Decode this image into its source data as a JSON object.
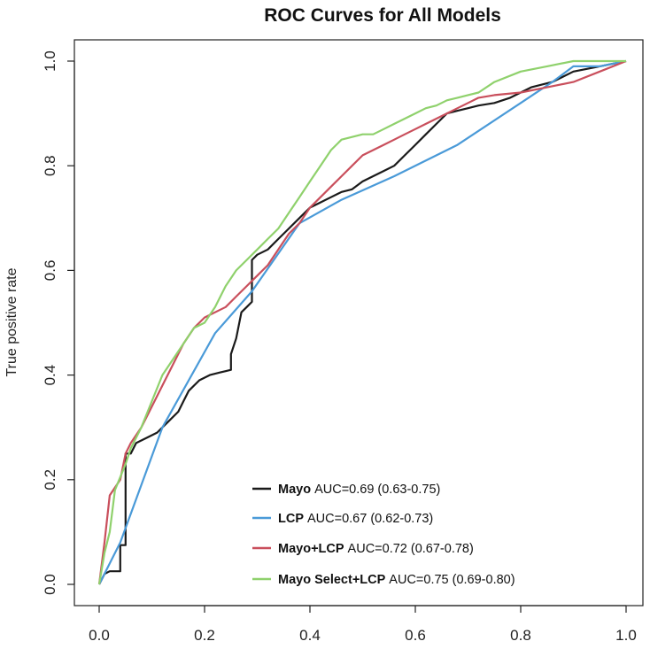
{
  "chart_data": {
    "type": "line",
    "title": "ROC Curves for All Models",
    "xlabel": "",
    "ylabel": "True positive rate",
    "xlim": [
      0,
      1
    ],
    "ylim": [
      0,
      1
    ],
    "x_ticks": [
      "0.0",
      "0.2",
      "0.4",
      "0.6",
      "0.8",
      "1.0"
    ],
    "y_ticks": [
      "0.0",
      "0.2",
      "0.4",
      "0.6",
      "0.8",
      "1.0"
    ],
    "grid": false,
    "legend_position": "bottom-right",
    "diagonal_reference": false,
    "series": [
      {
        "name": "Mayo",
        "auc_text": "AUC=0.69 (0.63-0.75)",
        "color": "#1a1a1a",
        "points": [
          [
            0,
            0
          ],
          [
            0.01,
            0.02
          ],
          [
            0.02,
            0.025
          ],
          [
            0.04,
            0.025
          ],
          [
            0.04,
            0.075
          ],
          [
            0.05,
            0.075
          ],
          [
            0.05,
            0.25
          ],
          [
            0.06,
            0.25
          ],
          [
            0.07,
            0.27
          ],
          [
            0.09,
            0.28
          ],
          [
            0.11,
            0.29
          ],
          [
            0.12,
            0.3
          ],
          [
            0.13,
            0.31
          ],
          [
            0.15,
            0.33
          ],
          [
            0.16,
            0.35
          ],
          [
            0.17,
            0.37
          ],
          [
            0.19,
            0.39
          ],
          [
            0.21,
            0.4
          ],
          [
            0.23,
            0.405
          ],
          [
            0.25,
            0.41
          ],
          [
            0.25,
            0.44
          ],
          [
            0.26,
            0.47
          ],
          [
            0.27,
            0.52
          ],
          [
            0.28,
            0.53
          ],
          [
            0.29,
            0.54
          ],
          [
            0.29,
            0.62
          ],
          [
            0.3,
            0.63
          ],
          [
            0.32,
            0.64
          ],
          [
            0.34,
            0.66
          ],
          [
            0.36,
            0.68
          ],
          [
            0.38,
            0.7
          ],
          [
            0.4,
            0.72
          ],
          [
            0.42,
            0.73
          ],
          [
            0.44,
            0.74
          ],
          [
            0.46,
            0.75
          ],
          [
            0.48,
            0.755
          ],
          [
            0.5,
            0.77
          ],
          [
            0.52,
            0.78
          ],
          [
            0.54,
            0.79
          ],
          [
            0.56,
            0.8
          ],
          [
            0.58,
            0.82
          ],
          [
            0.6,
            0.84
          ],
          [
            0.62,
            0.86
          ],
          [
            0.64,
            0.88
          ],
          [
            0.66,
            0.9
          ],
          [
            0.68,
            0.905
          ],
          [
            0.7,
            0.91
          ],
          [
            0.72,
            0.915
          ],
          [
            0.75,
            0.92
          ],
          [
            0.78,
            0.93
          ],
          [
            0.82,
            0.95
          ],
          [
            0.86,
            0.96
          ],
          [
            0.9,
            0.98
          ],
          [
            0.95,
            0.99
          ],
          [
            1,
            1
          ]
        ]
      },
      {
        "name": "LCP",
        "auc_text": "AUC=0.67 (0.62-0.73)",
        "color": "#4a9ad8",
        "points": [
          [
            0,
            0
          ],
          [
            0.04,
            0.08
          ],
          [
            0.12,
            0.3
          ],
          [
            0.22,
            0.48
          ],
          [
            0.29,
            0.56
          ],
          [
            0.38,
            0.69
          ],
          [
            0.46,
            0.735
          ],
          [
            0.56,
            0.78
          ],
          [
            0.68,
            0.84
          ],
          [
            0.8,
            0.92
          ],
          [
            0.86,
            0.96
          ],
          [
            0.9,
            0.99
          ],
          [
            0.95,
            0.99
          ],
          [
            1,
            1
          ]
        ]
      },
      {
        "name": "Mayo+LCP",
        "auc_text": "AUC=0.72 (0.67-0.78)",
        "color": "#c94f5c",
        "points": [
          [
            0,
            0
          ],
          [
            0.01,
            0.08
          ],
          [
            0.02,
            0.17
          ],
          [
            0.04,
            0.2
          ],
          [
            0.05,
            0.25
          ],
          [
            0.06,
            0.27
          ],
          [
            0.08,
            0.3
          ],
          [
            0.1,
            0.34
          ],
          [
            0.12,
            0.38
          ],
          [
            0.14,
            0.42
          ],
          [
            0.16,
            0.46
          ],
          [
            0.18,
            0.49
          ],
          [
            0.2,
            0.51
          ],
          [
            0.22,
            0.52
          ],
          [
            0.24,
            0.53
          ],
          [
            0.26,
            0.55
          ],
          [
            0.28,
            0.57
          ],
          [
            0.3,
            0.59
          ],
          [
            0.32,
            0.61
          ],
          [
            0.34,
            0.64
          ],
          [
            0.36,
            0.67
          ],
          [
            0.38,
            0.69
          ],
          [
            0.4,
            0.72
          ],
          [
            0.42,
            0.74
          ],
          [
            0.44,
            0.76
          ],
          [
            0.46,
            0.78
          ],
          [
            0.48,
            0.8
          ],
          [
            0.5,
            0.82
          ],
          [
            0.52,
            0.83
          ],
          [
            0.54,
            0.84
          ],
          [
            0.56,
            0.85
          ],
          [
            0.58,
            0.86
          ],
          [
            0.6,
            0.87
          ],
          [
            0.62,
            0.88
          ],
          [
            0.64,
            0.89
          ],
          [
            0.66,
            0.9
          ],
          [
            0.68,
            0.91
          ],
          [
            0.7,
            0.92
          ],
          [
            0.72,
            0.93
          ],
          [
            0.75,
            0.935
          ],
          [
            0.8,
            0.94
          ],
          [
            0.85,
            0.95
          ],
          [
            0.9,
            0.96
          ],
          [
            0.95,
            0.98
          ],
          [
            1,
            1
          ]
        ]
      },
      {
        "name": "Mayo Select+LCP",
        "auc_text": "AUC=0.75 (0.69-0.80)",
        "color": "#8fd16c",
        "points": [
          [
            0,
            0
          ],
          [
            0.01,
            0.06
          ],
          [
            0.02,
            0.1
          ],
          [
            0.03,
            0.18
          ],
          [
            0.05,
            0.23
          ],
          [
            0.06,
            0.26
          ],
          [
            0.08,
            0.3
          ],
          [
            0.1,
            0.35
          ],
          [
            0.12,
            0.4
          ],
          [
            0.14,
            0.43
          ],
          [
            0.16,
            0.46
          ],
          [
            0.18,
            0.49
          ],
          [
            0.2,
            0.5
          ],
          [
            0.22,
            0.53
          ],
          [
            0.24,
            0.57
          ],
          [
            0.26,
            0.6
          ],
          [
            0.28,
            0.62
          ],
          [
            0.3,
            0.64
          ],
          [
            0.32,
            0.66
          ],
          [
            0.34,
            0.68
          ],
          [
            0.36,
            0.71
          ],
          [
            0.38,
            0.74
          ],
          [
            0.4,
            0.77
          ],
          [
            0.42,
            0.8
          ],
          [
            0.44,
            0.83
          ],
          [
            0.46,
            0.85
          ],
          [
            0.48,
            0.855
          ],
          [
            0.5,
            0.86
          ],
          [
            0.52,
            0.86
          ],
          [
            0.54,
            0.87
          ],
          [
            0.56,
            0.88
          ],
          [
            0.58,
            0.89
          ],
          [
            0.6,
            0.9
          ],
          [
            0.62,
            0.91
          ],
          [
            0.64,
            0.915
          ],
          [
            0.66,
            0.925
          ],
          [
            0.68,
            0.93
          ],
          [
            0.7,
            0.935
          ],
          [
            0.72,
            0.94
          ],
          [
            0.75,
            0.96
          ],
          [
            0.8,
            0.98
          ],
          [
            0.85,
            0.99
          ],
          [
            0.9,
            1
          ],
          [
            1,
            1
          ]
        ]
      }
    ]
  }
}
